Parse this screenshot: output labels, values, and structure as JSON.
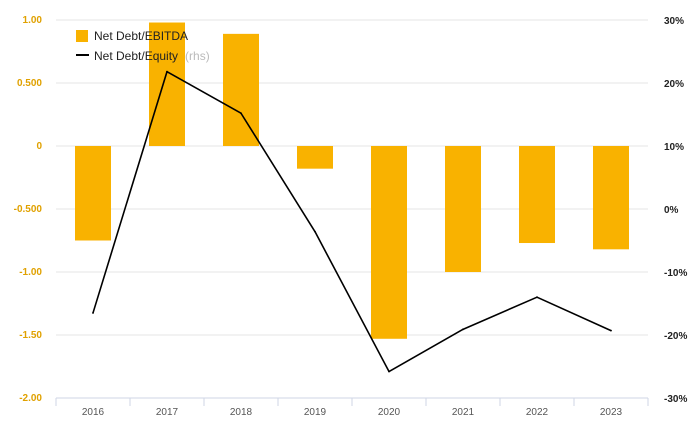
{
  "chart_data": {
    "type": "bar",
    "categories": [
      "2016",
      "2017",
      "2018",
      "2019",
      "2020",
      "2021",
      "2022",
      "2023"
    ],
    "series": [
      {
        "name": "Net Debt/EBITDA",
        "type": "bar",
        "axis": "left",
        "color": "#f9b200",
        "values": [
          -0.75,
          0.98,
          0.89,
          -0.18,
          -1.53,
          -1.0,
          -0.77,
          -0.82
        ]
      },
      {
        "name": "Net Debt/Equity",
        "name_suffix": "(rhs)",
        "type": "line",
        "axis": "right",
        "color": "#000000",
        "values": [
          -16.5,
          21.8,
          15.2,
          -3.6,
          -25.8,
          -19.1,
          -14.0,
          -19.3
        ]
      }
    ],
    "y_left": {
      "ylim": [
        -2.0,
        1.0
      ],
      "ticks": [
        1.0,
        0.5,
        0,
        -0.5,
        -1.0,
        -1.5,
        -2.0
      ],
      "tick_labels": [
        "1.00",
        "0.500",
        "0",
        "-0.500",
        "-1.00",
        "-1.50",
        "-2.00"
      ]
    },
    "y_right": {
      "ylim": [
        -30,
        30
      ],
      "ticks": [
        30,
        20,
        10,
        0,
        -10,
        -20,
        -30
      ],
      "tick_labels": [
        "30%",
        "20%",
        "10%",
        "0%",
        "-10%",
        "-20%",
        "-30%"
      ]
    },
    "grid": true,
    "legend_position": "top-left"
  },
  "colors": {
    "bar": "#f9b200",
    "line": "#000000",
    "grid": "#e6e6e6",
    "left_tick": "#e0a100",
    "right_tick": "#222222"
  }
}
